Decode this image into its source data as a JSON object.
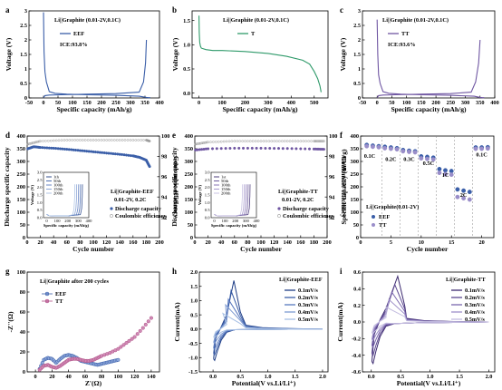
{
  "colors": {
    "blue": "#3a5ea8",
    "purple": "#6f56a2",
    "lilac": "#9a8ec9",
    "pink": "#b04f86",
    "grey": "#9a9a9a",
    "blues": [
      "#1f3e86",
      "#3a5ea8",
      "#5878be",
      "#7d9ad1",
      "#a8c0e4"
    ],
    "purples": [
      "#3c2a70",
      "#5b4790",
      "#7a66ad",
      "#9d8fc8",
      "#c4bde0"
    ]
  },
  "chart_data": [
    {
      "id": "a",
      "type": "line",
      "label": "a",
      "xlabel": "Specific capacity (mAh/g)",
      "ylabel": "Voltage (V)",
      "xlim": [
        -50,
        400
      ],
      "ylim": [
        0,
        3.0
      ],
      "xticks": [
        -50,
        0,
        50,
        100,
        150,
        200,
        250,
        300,
        350,
        400
      ],
      "yticks": [
        0,
        0.5,
        1.0,
        1.5,
        2.0,
        2.5,
        3.0
      ],
      "annotation": "Li||Graphite (0.01-2V,0.1C)",
      "legend": [
        "EEF"
      ],
      "text": "ICE:93.8%",
      "series": [
        {
          "name": "EEF",
          "x": [
            0,
            2,
            5,
            10,
            20,
            40,
            80,
            150,
            250,
            330,
            355,
            362,
            368
          ],
          "y": [
            2.95,
            1.6,
            0.9,
            0.55,
            0.22,
            0.16,
            0.13,
            0.11,
            0.09,
            0.06,
            0.02,
            0.01,
            0.01
          ]
        },
        {
          "x": [
            0,
            5,
            20,
            60,
            150,
            250,
            330,
            345,
            352,
            355
          ],
          "y": [
            0.01,
            0.08,
            0.1,
            0.11,
            0.13,
            0.15,
            0.2,
            0.55,
            1.2,
            2.0
          ]
        }
      ]
    },
    {
      "id": "b",
      "type": "line",
      "label": "b",
      "xlabel": "Specific capacity (mAh/g)",
      "ylabel": "Voltage (V)",
      "xlim": [
        -30,
        560
      ],
      "ylim": [
        -0.1,
        1.7
      ],
      "xticks": [
        0,
        100,
        200,
        300,
        400,
        500
      ],
      "yticks": [
        0.0,
        0.5,
        1.0,
        1.5
      ],
      "annotation": "Li||Graphite (0.01-2V,0.1C)",
      "legend": [
        "T"
      ],
      "series": [
        {
          "name": "T",
          "x": [
            0,
            1,
            3,
            6,
            10,
            30,
            60,
            100,
            200,
            300,
            380,
            450,
            480,
            500,
            515,
            525,
            530
          ],
          "y": [
            1.6,
            1.25,
            1.05,
            0.97,
            0.93,
            0.9,
            0.88,
            0.88,
            0.86,
            0.82,
            0.76,
            0.68,
            0.6,
            0.45,
            0.3,
            0.15,
            0.02
          ]
        }
      ]
    },
    {
      "id": "c",
      "type": "line",
      "label": "c",
      "xlabel": "Specific capacity (mAh/g)",
      "ylabel": "Voltage (V)",
      "xlim": [
        -50,
        400
      ],
      "ylim": [
        0,
        3.0
      ],
      "xticks": [
        -50,
        0,
        50,
        100,
        150,
        200,
        250,
        300,
        350,
        400
      ],
      "yticks": [
        0,
        0.5,
        1.0,
        1.5,
        2.0,
        2.5,
        3.0
      ],
      "annotation": "Li||Graphite (0.01-2V,0.1C)",
      "legend": [
        "TT"
      ],
      "text": "ICE:93.6%",
      "series": [
        {
          "name": "TT",
          "x": [
            0,
            2,
            5,
            10,
            20,
            40,
            80,
            150,
            250,
            330,
            350,
            358,
            364
          ],
          "y": [
            2.7,
            1.5,
            0.8,
            0.5,
            0.22,
            0.16,
            0.13,
            0.11,
            0.09,
            0.06,
            0.02,
            0.01,
            0.01
          ]
        },
        {
          "x": [
            0,
            5,
            20,
            60,
            150,
            250,
            320,
            335,
            345,
            350
          ],
          "y": [
            0.01,
            0.08,
            0.1,
            0.11,
            0.13,
            0.15,
            0.2,
            0.55,
            1.2,
            2.0
          ]
        }
      ]
    },
    {
      "id": "d",
      "type": "scatter",
      "label": "d",
      "xlabel": "Cycle number",
      "ylabel": "Discharge specific capacity",
      "y2label": "Coulombic efficiency",
      "xlim": [
        0,
        200
      ],
      "ylim": [
        0,
        400
      ],
      "y2lim": [
        90,
        100
      ],
      "xticks": [
        0,
        20,
        40,
        60,
        80,
        100,
        120,
        140,
        160,
        180,
        200
      ],
      "yticks": [
        0,
        50,
        100,
        150,
        200,
        250,
        300,
        350,
        400
      ],
      "y2ticks": [
        92,
        94,
        96,
        98,
        100
      ],
      "annotation": "Li||Graphite-EEF",
      "annotation2": "0.01-2V, 0.2C",
      "legend": [
        "Discharge capacity",
        "Coulombic efficiency"
      ],
      "capacity": {
        "x": [
          1,
          10,
          20,
          40,
          60,
          80,
          100,
          120,
          140,
          160,
          170,
          180,
          185
        ],
        "y": [
          350,
          358,
          355,
          352,
          348,
          343,
          338,
          333,
          328,
          322,
          316,
          305,
          280
        ]
      },
      "efficiency": {
        "x": [
          1,
          20,
          60,
          100,
          140,
          180,
          185
        ],
        "y": [
          99.2,
          99.5,
          99.6,
          99.6,
          99.6,
          99.6,
          99.5
        ]
      },
      "inset": {
        "xlabel": "Specific capacity (mAh/g)",
        "ylabel": "Voltage (V)",
        "xticks": [
          0,
          100,
          200,
          300,
          400
        ],
        "yticks": [
          0.0,
          0.5,
          1.0,
          1.5,
          2.0,
          2.5,
          3.0
        ],
        "legend": [
          "1th",
          "50th",
          "100th",
          "150th",
          "200th"
        ]
      }
    },
    {
      "id": "e",
      "type": "scatter",
      "label": "e",
      "xlabel": "Cycle number",
      "ylabel": "Discharge specific capacity",
      "y2label": "Coulombic efficiency",
      "xlim": [
        0,
        200
      ],
      "ylim": [
        0,
        400
      ],
      "y2lim": [
        90,
        100
      ],
      "xticks": [
        0,
        20,
        40,
        60,
        80,
        100,
        120,
        140,
        160,
        180,
        200
      ],
      "yticks": [
        0,
        50,
        100,
        150,
        200,
        250,
        300,
        350,
        400
      ],
      "y2ticks": [
        92,
        94,
        96,
        98,
        100
      ],
      "annotation": "Li||Graphite-TT",
      "annotation2": "0.01-2V, 0.2C",
      "legend": [
        "Discharge capacity",
        "Coulombic efficiency"
      ],
      "capacity": {
        "x": [
          1,
          20,
          60,
          100,
          140,
          180,
          195
        ],
        "y": [
          345,
          350,
          352,
          352,
          351,
          349,
          348
        ]
      },
      "efficiency": {
        "x": [
          1,
          20,
          60,
          100,
          140,
          180,
          195
        ],
        "y": [
          99.2,
          99.4,
          99.5,
          99.5,
          99.5,
          99.5,
          99.5
        ]
      },
      "inset": {
        "xlabel": "Specific capacity (mAh/g)",
        "ylabel": "Voltage (V)",
        "xticks": [
          0,
          100,
          200,
          300,
          400
        ],
        "yticks": [
          0.0,
          0.5,
          1.0,
          1.5,
          2.0,
          2.5,
          3.0
        ],
        "legend": [
          "1st",
          "50th",
          "100th",
          "150th",
          "200th"
        ]
      }
    },
    {
      "id": "f",
      "type": "scatter",
      "label": "f",
      "xlabel": "Cycle number",
      "ylabel": "Specific capacity (mAh/g)",
      "xlim": [
        0,
        22
      ],
      "ylim": [
        0,
        400
      ],
      "xticks": [
        0,
        5,
        10,
        15,
        20
      ],
      "yticks": [
        0,
        50,
        100,
        150,
        200,
        250,
        300,
        350,
        400
      ],
      "annotation": "Li||Graphite(0.01-2V)",
      "legend": [
        "EEF",
        "TT"
      ],
      "rates": [
        "0.1C",
        "0.2C",
        "0.3C",
        "0.5C",
        "1C",
        "2C",
        "0.1C"
      ],
      "series": [
        {
          "name": "EEF",
          "x": [
            1,
            2,
            3,
            4,
            5,
            6,
            7,
            8,
            9,
            10,
            11,
            12,
            13,
            14,
            15,
            16,
            17,
            18,
            19,
            20,
            21
          ],
          "y": [
            365,
            362,
            360,
            358,
            355,
            352,
            345,
            342,
            340,
            320,
            318,
            315,
            270,
            265,
            262,
            190,
            185,
            180,
            355,
            355,
            356
          ]
        },
        {
          "name": "TT",
          "x": [
            1,
            2,
            3,
            4,
            5,
            6,
            7,
            8,
            9,
            10,
            11,
            12,
            13,
            14,
            15,
            16,
            17,
            18,
            19,
            20,
            21
          ],
          "y": [
            360,
            358,
            356,
            352,
            350,
            348,
            340,
            338,
            336,
            312,
            310,
            308,
            255,
            250,
            248,
            160,
            155,
            150,
            350,
            350,
            351
          ]
        }
      ]
    },
    {
      "id": "g",
      "type": "scatter",
      "label": "g",
      "xlabel": "Z'(Ω)",
      "ylabel": "-Z''(Ω)",
      "xlim": [
        -10,
        150
      ],
      "ylim": [
        0,
        100
      ],
      "xticks": [
        0,
        20,
        40,
        60,
        80,
        100,
        120,
        140
      ],
      "yticks": [
        0,
        20,
        40,
        60,
        80,
        100
      ],
      "annotation": "Li||Graphite   after 200 cycles",
      "legend": [
        "EEF",
        "TT"
      ],
      "series": [
        {
          "name": "EEF",
          "x": [
            5,
            10,
            15,
            20,
            25,
            30,
            35,
            40,
            45,
            50,
            55,
            60,
            65,
            70,
            75,
            80,
            85,
            90,
            95,
            100
          ],
          "y": [
            3,
            12,
            14,
            13,
            9,
            13,
            16,
            17,
            16,
            14,
            11,
            10,
            9,
            8,
            7,
            8,
            9,
            10,
            11,
            12
          ]
        },
        {
          "name": "TT",
          "x": [
            5,
            10,
            15,
            20,
            25,
            30,
            35,
            40,
            45,
            50,
            55,
            60,
            65,
            70,
            75,
            80,
            90,
            100,
            110,
            120,
            130,
            140
          ],
          "y": [
            2,
            6,
            7,
            5,
            4,
            6,
            9,
            12,
            13,
            13,
            12,
            11,
            11,
            12,
            14,
            16,
            19,
            23,
            29,
            35,
            44,
            54
          ]
        }
      ]
    },
    {
      "id": "h",
      "type": "line",
      "label": "h",
      "xlabel": "Potential(V vs.Li/Li⁺)",
      "ylabel": "Current(mA)",
      "xlim": [
        -0.25,
        2.1
      ],
      "ylim": [
        -1.5,
        2.0
      ],
      "xticks": [
        0.0,
        0.5,
        1.0,
        1.5,
        2.0
      ],
      "yticks": [
        -1.5,
        -1.0,
        -0.5,
        0.0,
        0.5,
        1.0,
        1.5,
        2.0
      ],
      "annotation": "Li||Graphite-EEF",
      "legend": [
        "0.1mV/s",
        "0.2mV/s",
        "0.3mV/s",
        "0.4mV/s",
        "0.5mV/s"
      ],
      "peaks": [
        1.7,
        1.35,
        1.05,
        0.85,
        0.55
      ],
      "troughs": [
        -1.1,
        -0.9,
        -0.7,
        -0.5,
        -0.3
      ]
    },
    {
      "id": "i",
      "type": "line",
      "label": "i",
      "xlabel": "Potential(V vs.Li/Li⁺)",
      "ylabel": "Current(mA)",
      "xlim": [
        -0.15,
        2.1
      ],
      "ylim": [
        -0.6,
        0.6
      ],
      "xticks": [
        0.0,
        0.5,
        1.0,
        1.5,
        2.0
      ],
      "yticks": [
        -0.6,
        -0.4,
        -0.2,
        0.0,
        0.2,
        0.4,
        0.6
      ],
      "annotation": "Li||Graphite-TT",
      "legend": [
        "0.1mV/s",
        "0.2mV/s",
        "0.3mV/s",
        "0.4mV/s",
        "0.5mV/s"
      ],
      "peaks": [
        0.55,
        0.45,
        0.36,
        0.27,
        0.18
      ],
      "troughs": [
        -0.5,
        -0.4,
        -0.3,
        -0.22,
        -0.14
      ]
    }
  ]
}
